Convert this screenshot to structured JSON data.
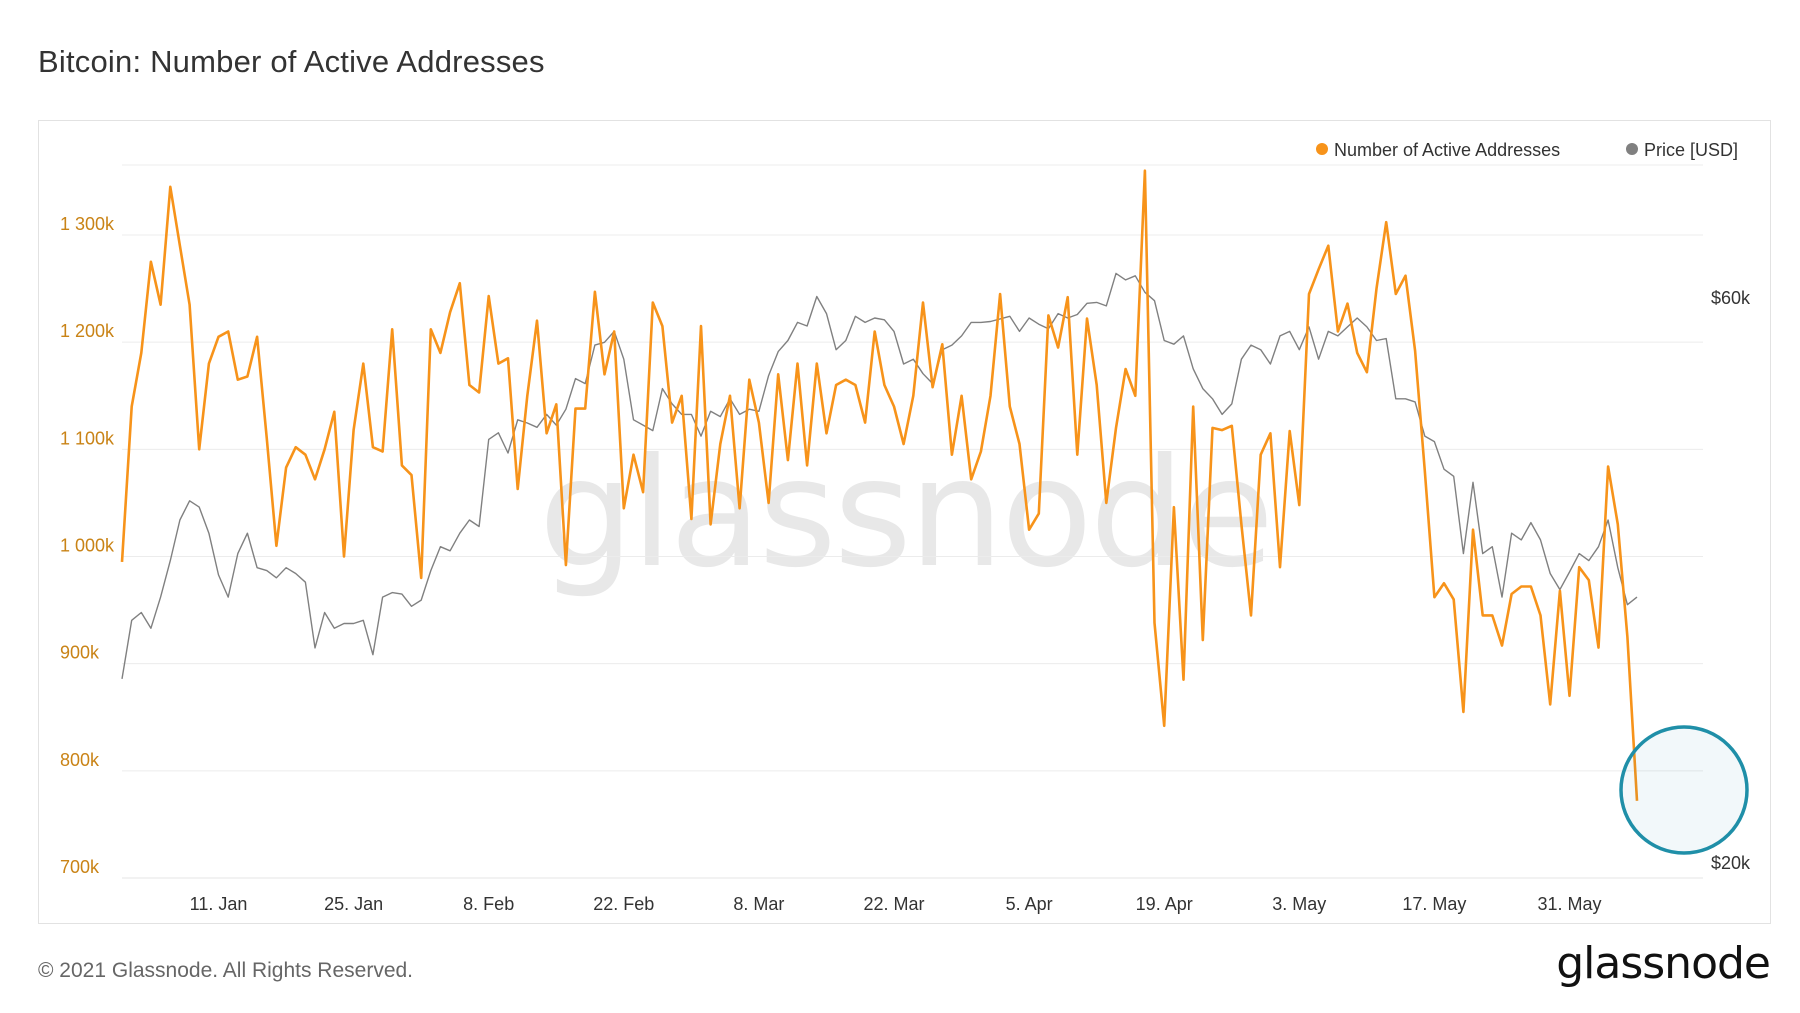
{
  "page": {
    "title": "Bitcoin: Number of Active Addresses",
    "footer": "© 2021 Glassnode. All Rights Reserved.",
    "logo_text": "glassnode",
    "watermark": "glassnode"
  },
  "colors": {
    "addresses": "#f7931a",
    "price": "#808080",
    "left_axis_text": "#c98316",
    "right_axis_text": "#333333",
    "grid": "#ececec",
    "highlight": "#1f8fa8"
  },
  "chart_data": {
    "type": "line",
    "title": "Bitcoin: Number of Active Addresses",
    "legend": {
      "position": "top-right",
      "items": [
        "Number of Active Addresses",
        "Price [USD]"
      ]
    },
    "x": {
      "start": "2021-01-01",
      "end": "2021-06-07",
      "step_days": 1
    },
    "x_ticks": [
      {
        "date": "2021-01-11",
        "label": "11. Jan"
      },
      {
        "date": "2021-01-25",
        "label": "25. Jan"
      },
      {
        "date": "2021-02-08",
        "label": "8. Feb"
      },
      {
        "date": "2021-02-22",
        "label": "22. Feb"
      },
      {
        "date": "2021-03-08",
        "label": "8. Mar"
      },
      {
        "date": "2021-03-22",
        "label": "22. Mar"
      },
      {
        "date": "2021-04-05",
        "label": "5. Apr"
      },
      {
        "date": "2021-04-19",
        "label": "19. Apr"
      },
      {
        "date": "2021-05-03",
        "label": "3. May"
      },
      {
        "date": "2021-05-17",
        "label": "17. May"
      },
      {
        "date": "2021-05-31",
        "label": "31. May"
      }
    ],
    "y_left": {
      "ylim": [
        700000,
        1370000
      ],
      "ticks": [
        {
          "value": 700000,
          "label": "700k"
        },
        {
          "value": 800000,
          "label": "800k"
        },
        {
          "value": 900000,
          "label": "900k"
        },
        {
          "value": 1000000,
          "label": "1 000k"
        },
        {
          "value": 1100000,
          "label": "1 100k"
        },
        {
          "value": 1200000,
          "label": "1 200k"
        },
        {
          "value": 1300000,
          "label": "1 300k"
        }
      ]
    },
    "y_right": {
      "scale": "log",
      "ticks": [
        {
          "value": 20000,
          "label": "$20k"
        },
        {
          "value": 60000,
          "label": "$60k"
        }
      ]
    },
    "series": [
      {
        "name": "Number of Active Addresses",
        "axis": "left",
        "values": [
          995000,
          1140000,
          1190000,
          1275000,
          1235000,
          1345000,
          1290000,
          1235000,
          1100000,
          1180000,
          1205000,
          1210000,
          1165000,
          1168000,
          1205000,
          1110000,
          1010000,
          1083000,
          1102000,
          1095000,
          1072000,
          1100000,
          1135000,
          1000000,
          1118000,
          1180000,
          1102000,
          1098000,
          1212000,
          1085000,
          1076000,
          980000,
          1212000,
          1190000,
          1228000,
          1255000,
          1160000,
          1153000,
          1243000,
          1180000,
          1185000,
          1063000,
          1150000,
          1220000,
          1115000,
          1142000,
          992000,
          1138000,
          1138000,
          1247000,
          1170000,
          1210000,
          1045000,
          1095000,
          1060000,
          1237000,
          1215000,
          1125000,
          1150000,
          1035000,
          1215000,
          1030000,
          1105000,
          1150000,
          1045000,
          1165000,
          1125000,
          1050000,
          1170000,
          1090000,
          1180000,
          1085000,
          1180000,
          1115000,
          1160000,
          1165000,
          1160000,
          1125000,
          1210000,
          1160000,
          1140000,
          1105000,
          1150000,
          1237000,
          1158000,
          1198000,
          1095000,
          1150000,
          1072000,
          1098000,
          1150000,
          1245000,
          1140000,
          1105000,
          1025000,
          1040000,
          1225000,
          1195000,
          1242000,
          1095000,
          1222000,
          1160000,
          1050000,
          1120000,
          1175000,
          1150000,
          1360000,
          938000,
          842000,
          1046000,
          885000,
          1140000,
          922000,
          1120000,
          1118000,
          1122000,
          1030000,
          945000,
          1095000,
          1115000,
          990000,
          1117000,
          1048000,
          1245000,
          1268000,
          1290000,
          1210000,
          1236000,
          1190000,
          1172000,
          1250000,
          1312000,
          1245000,
          1262000,
          1192000,
          1080000,
          962000,
          975000,
          960000,
          855000,
          1025000,
          945000,
          945000,
          917000,
          965000,
          972000,
          972000,
          945000,
          862000,
          968000,
          870000,
          990000,
          978000,
          915000,
          1084000,
          1030000,
          925000,
          772000
        ]
      },
      {
        "name": "Price [USD]",
        "axis": "right",
        "values": [
          29000,
          32500,
          33000,
          32000,
          34000,
          36500,
          39500,
          41000,
          40500,
          38500,
          35500,
          34000,
          37000,
          38500,
          36000,
          35800,
          35300,
          36000,
          35600,
          35000,
          30800,
          33000,
          32000,
          32300,
          32300,
          32500,
          30400,
          34000,
          34300,
          34200,
          33400,
          33800,
          35800,
          37500,
          37200,
          38500,
          39500,
          39000,
          46200,
          46800,
          45000,
          48000,
          47700,
          47300,
          48500,
          47500,
          49000,
          52000,
          51500,
          55500,
          55800,
          57000,
          54000,
          48000,
          47500,
          47000,
          51000,
          49500,
          48500,
          48500,
          46500,
          48800,
          48300,
          50000,
          48500,
          49000,
          48800,
          52300,
          54800,
          56000,
          58000,
          57600,
          61000,
          59000,
          55000,
          56000,
          58700,
          58000,
          58500,
          58300,
          57000,
          53500,
          54000,
          52500,
          51500,
          55000,
          55500,
          56500,
          58000,
          58000,
          58100,
          58400,
          58700,
          57000,
          58500,
          57800,
          57300,
          59000,
          58500,
          58900,
          60200,
          60300,
          59900,
          63800,
          63000,
          63500,
          61500,
          60500,
          56000,
          55600,
          56500,
          53000,
          51000,
          50000,
          48500,
          49500,
          54000,
          55500,
          55000,
          53500,
          56500,
          57000,
          55000,
          57500,
          54000,
          57000,
          56500,
          57500,
          58500,
          57500,
          56000,
          56200,
          50000,
          50000,
          49700,
          46500,
          46000,
          43600,
          43000,
          37000,
          42500,
          37000,
          37500,
          34000,
          38500,
          38000,
          39300,
          38000,
          35600,
          34500,
          35700,
          37000,
          36500,
          37500,
          39500,
          36000,
          33500,
          34000
        ]
      }
    ]
  }
}
